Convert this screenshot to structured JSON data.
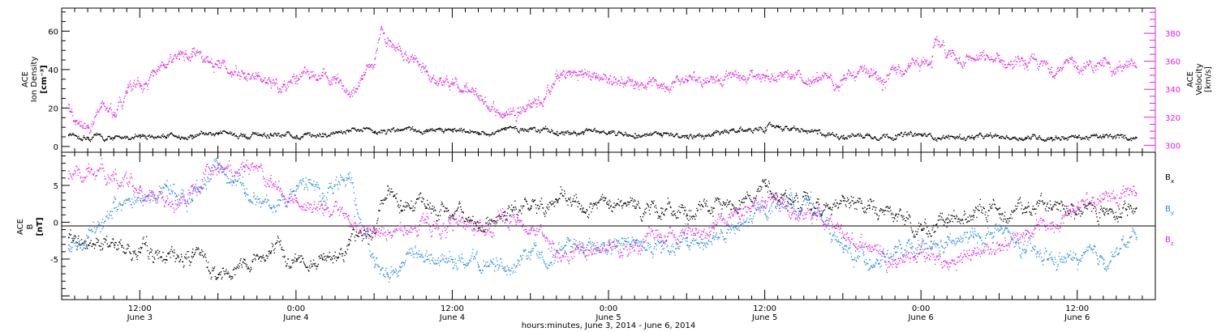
{
  "x_axis": {
    "label": "hours:minutes, June  3, 2014 - June  6, 2014",
    "ticks": [
      {
        "time": "12:00",
        "date": "June 3",
        "hour": 12
      },
      {
        "time": "0:00",
        "date": "June 4",
        "hour": 24
      },
      {
        "time": "12:00",
        "date": "June 4",
        "hour": 36
      },
      {
        "time": "0:00",
        "date": "June 5",
        "hour": 48
      },
      {
        "time": "12:00",
        "date": "June 5",
        "hour": 60
      },
      {
        "time": "0:00",
        "date": "June 6",
        "hour": 72
      },
      {
        "time": "12:00",
        "date": "June 6",
        "hour": 84
      }
    ]
  },
  "top_panel": {
    "left_axis": {
      "line1": "ACE",
      "line2": "Ion Density",
      "line3": "[cm⁻³]",
      "ticks": [
        "0",
        "20",
        "40",
        "60"
      ]
    },
    "right_axis": {
      "line1": "ACE",
      "line2": "Velocity",
      "line3": "[km/s]",
      "ticks": [
        "300",
        "320",
        "340",
        "360",
        "380"
      ]
    }
  },
  "bottom_panel": {
    "left_axis": {
      "line1": "ACE",
      "line2": "B",
      "line3": "[nT]",
      "ticks": [
        "-5",
        "0",
        "5"
      ]
    },
    "legend": [
      {
        "label": "B",
        "sub": "x",
        "color": "#000000"
      },
      {
        "label": "B",
        "sub": "y",
        "color": "#1e88e5"
      },
      {
        "label": "B",
        "sub": "z",
        "color": "#e020e0"
      }
    ]
  },
  "colors": {
    "density": "#000000",
    "velocity": "#e020e0",
    "bx": "#000000",
    "by": "#1e88e5",
    "bz": "#e020e0"
  },
  "chart_data": [
    {
      "type": "scatter",
      "title": "",
      "xlabel": "hours:minutes, June  3, 2014 - June  6, 2014",
      "ylabel": "ACE Ion Density [cm⁻³]",
      "x_unit": "hours since June 3, 2014 0:00",
      "xlim": [
        6,
        90
      ],
      "ylim": [
        -3,
        72
      ],
      "y2label": "ACE Velocity [km/s]",
      "y2lim": [
        295,
        398
      ],
      "grid": false,
      "series": [
        {
          "name": "Ion Density",
          "axis": "left",
          "color": "#000000",
          "x": [
            6.5,
            8,
            10,
            12,
            14,
            16,
            18,
            20,
            22,
            24,
            26,
            28,
            30,
            32,
            34,
            36,
            38,
            40,
            42,
            44,
            46,
            48,
            50,
            52,
            54,
            56,
            58,
            60,
            61,
            62,
            64,
            66,
            68,
            70,
            72,
            74,
            76,
            78,
            80,
            82,
            84,
            86,
            88.5
          ],
          "values": [
            6,
            5,
            5,
            5,
            5,
            6,
            7,
            6,
            7,
            6,
            7,
            8,
            8,
            9,
            8,
            8,
            7,
            9,
            10,
            8,
            8,
            8,
            7,
            6,
            6,
            6,
            8,
            10,
            11,
            9,
            7,
            6,
            6,
            6,
            6,
            5,
            5,
            5,
            5,
            5,
            5,
            5,
            5
          ]
        },
        {
          "name": "Velocity",
          "axis": "right",
          "color": "#e020e0",
          "x": [
            6.5,
            7,
            8,
            9,
            10,
            11,
            12,
            13,
            14,
            15,
            16,
            17,
            18,
            19,
            20,
            21,
            22,
            23,
            24,
            25,
            26,
            27,
            28,
            29,
            30,
            30.5,
            31,
            32,
            33,
            34,
            35,
            36,
            37,
            38,
            39,
            40,
            41,
            42,
            43,
            44,
            45,
            46,
            47,
            48,
            50,
            52,
            54,
            56,
            58,
            60,
            62,
            64,
            66,
            68,
            68.5,
            69,
            70,
            71,
            72,
            72.8,
            73,
            74,
            76,
            78,
            80,
            82,
            84,
            86,
            88.5
          ],
          "values": [
            327,
            318,
            313,
            328,
            322,
            338,
            343,
            350,
            356,
            362,
            364,
            360,
            356,
            353,
            352,
            350,
            346,
            344,
            350,
            348,
            350,
            345,
            337,
            350,
            362,
            385,
            377,
            368,
            360,
            353,
            348,
            344,
            339,
            334,
            328,
            322,
            327,
            330,
            333,
            348,
            351,
            351,
            350,
            348,
            346,
            344,
            347,
            349,
            350,
            350,
            348,
            346,
            348,
            350,
            353,
            340,
            356,
            357,
            360,
            356,
            372,
            365,
            362,
            360,
            358,
            356,
            357,
            357,
            356
          ]
        }
      ]
    },
    {
      "type": "scatter",
      "title": "",
      "xlabel": "hours:minutes, June  3, 2014 - June  6, 2014",
      "ylabel": "ACE B [nT]",
      "x_unit": "hours since June 3, 2014 0:00",
      "xlim": [
        6,
        90
      ],
      "ylim": [
        -10.5,
        9.5
      ],
      "grid": false,
      "reference_line": 0,
      "series": [
        {
          "name": "Bx",
          "color": "#000000",
          "x": [
            6.5,
            8,
            10,
            12,
            14,
            16,
            18,
            20,
            22,
            24,
            26,
            28,
            30,
            31,
            32,
            34,
            36,
            38,
            40,
            42,
            44,
            46,
            48,
            50,
            52,
            54,
            56,
            58,
            60,
            62,
            64,
            66,
            68,
            70,
            72,
            74,
            76,
            78,
            80,
            82,
            84,
            86,
            88.5
          ],
          "values": [
            -2,
            -3,
            -3,
            -4,
            -5,
            -4,
            -7,
            -5,
            -4,
            -5,
            -5,
            -3,
            -1,
            5,
            3,
            2,
            1,
            0,
            1,
            2,
            3,
            2,
            2,
            2,
            2,
            1,
            2,
            3,
            5,
            3,
            2,
            3,
            2,
            1,
            -1,
            0,
            1,
            2,
            2,
            2,
            2,
            2,
            2
          ]
        },
        {
          "name": "By",
          "color": "#1e88e5",
          "x": [
            6.5,
            8,
            10,
            12,
            14,
            16,
            18,
            20,
            22,
            24,
            26,
            28,
            30,
            31,
            32,
            34,
            36,
            38,
            40,
            42,
            44,
            46,
            48,
            50,
            52,
            54,
            56,
            58,
            60,
            62,
            64,
            66,
            68,
            70,
            72,
            74,
            76,
            78,
            80,
            82,
            84,
            86,
            88.5
          ],
          "values": [
            -3,
            -2,
            2,
            3,
            5,
            3,
            8,
            4,
            2,
            5,
            4,
            6,
            -6,
            -7,
            -6,
            -5,
            -5,
            -6,
            -6,
            -4,
            -4,
            -3,
            -3,
            -3,
            -4,
            -3,
            -2,
            -1,
            2,
            3,
            2,
            -4,
            -5,
            -4,
            -4,
            -3,
            -2,
            -1,
            -4,
            -5,
            -5,
            -5,
            -2
          ]
        },
        {
          "name": "Bz",
          "color": "#e020e0",
          "x": [
            6.5,
            8,
            10,
            12,
            14,
            16,
            18,
            20,
            22,
            24,
            26,
            28,
            30,
            32,
            34,
            36,
            38,
            40,
            42,
            44,
            46,
            48,
            50,
            52,
            54,
            56,
            58,
            60,
            62,
            64,
            66,
            68,
            70,
            72,
            74,
            76,
            78,
            80,
            82,
            84,
            86,
            88.5
          ],
          "values": [
            6,
            7,
            6,
            5,
            3,
            4,
            7,
            7,
            6,
            3,
            2,
            1,
            -1,
            -1,
            0,
            -1,
            -1,
            0,
            -1,
            -4,
            -4,
            -3,
            -3,
            -2,
            -2,
            0,
            2,
            3,
            2,
            1,
            -2,
            -3,
            -5,
            -4,
            -6,
            -4,
            -3,
            -1,
            0,
            2,
            4,
            4
          ]
        }
      ]
    }
  ]
}
